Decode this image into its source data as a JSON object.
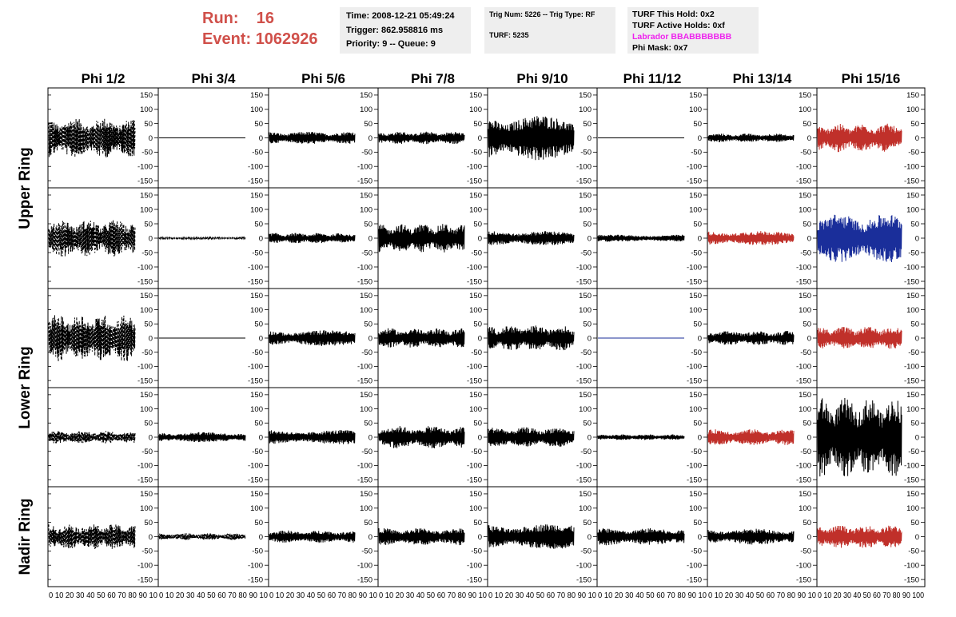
{
  "header": {
    "run_label": "Run:",
    "run_value": "16",
    "event_label": "Event:",
    "event_value": "1062926",
    "run_color": "#d0504a"
  },
  "info1": {
    "time": "Time: 2008-12-21 05:49:24",
    "trigger": "Trigger: 862.958816 ms",
    "priority": "Priority: 9 -- Queue: 9"
  },
  "info2": {
    "trig": "Trig Num: 5226 -- Trig Type: RF",
    "turf": "TURF: 5235"
  },
  "info3": {
    "this_hold": "TURF This Hold: 0x2",
    "active_holds": "TURF Active Holds: 0xf",
    "labrador": "Labrador BBABBBBBBB",
    "labrador_color": "#ee22ee",
    "phi_mask": "Phi Mask: 0x7"
  },
  "chart_data": {
    "type": "line",
    "layout": "grid",
    "column_titles": [
      "Phi 1/2",
      "Phi 3/4",
      "Phi 5/6",
      "Phi 7/8",
      "Phi 9/10",
      "Phi 11/12",
      "Phi 13/14",
      "Phi 15/16"
    ],
    "ring_labels": [
      "Upper Ring",
      "Lower Ring",
      "Nadir Ring"
    ],
    "rows_per_ring": [
      2,
      2,
      1
    ],
    "ylim": [
      -175,
      175
    ],
    "y_ticks": [
      -150,
      -100,
      -50,
      0,
      50,
      100,
      150
    ],
    "xlim": [
      0,
      100
    ],
    "x_tick_labels": [
      "0",
      "10",
      "20",
      "30",
      "40",
      "50",
      "60",
      "70",
      "80",
      "90",
      "100"
    ],
    "x_tick_label_text": "0 10 20 30 40 50 60 70 80 90 10",
    "last_x_tick_label_text": "0 10 20 30 40 50 60 70 80 90 100",
    "colors": {
      "black": "#000000",
      "red": "#c0302a",
      "blue": "#1a2e9a"
    },
    "panels": [
      [
        {
          "amp": 70,
          "color": "black",
          "dashed": true
        },
        {
          "amp": 0,
          "color": "black"
        },
        {
          "amp": 22,
          "color": "black"
        },
        {
          "amp": 22,
          "color": "black"
        },
        {
          "amp": 80,
          "color": "black"
        },
        {
          "amp": 0,
          "color": "black"
        },
        {
          "amp": 15,
          "color": "black"
        },
        {
          "amp": 50,
          "color": "red"
        }
      ],
      [
        {
          "amp": 65,
          "color": "black",
          "dashed": true
        },
        {
          "amp": 3,
          "color": "black",
          "dashed": true
        },
        {
          "amp": 18,
          "color": "black"
        },
        {
          "amp": 50,
          "color": "black"
        },
        {
          "amp": 25,
          "color": "black"
        },
        {
          "amp": 12,
          "color": "black"
        },
        {
          "amp": 25,
          "color": "red"
        },
        {
          "amp": 85,
          "color": "blue"
        }
      ],
      [
        {
          "amp": 85,
          "color": "black",
          "dashed": true
        },
        {
          "amp": 0,
          "color": "black"
        },
        {
          "amp": 28,
          "color": "black"
        },
        {
          "amp": 35,
          "color": "black"
        },
        {
          "amp": 45,
          "color": "black"
        },
        {
          "amp": 0,
          "color": "blue"
        },
        {
          "amp": 25,
          "color": "black"
        },
        {
          "amp": 40,
          "color": "red"
        }
      ],
      [
        {
          "amp": 22,
          "color": "black",
          "dashed": true
        },
        {
          "amp": 18,
          "color": "black"
        },
        {
          "amp": 25,
          "color": "black"
        },
        {
          "amp": 40,
          "color": "black"
        },
        {
          "amp": 35,
          "color": "black"
        },
        {
          "amp": 10,
          "color": "black"
        },
        {
          "amp": 28,
          "color": "red"
        },
        {
          "amp": 140,
          "color": "black"
        }
      ],
      [
        {
          "amp": 45,
          "color": "black",
          "dashed": true
        },
        {
          "amp": 12,
          "color": "black",
          "dashed": true
        },
        {
          "amp": 22,
          "color": "black"
        },
        {
          "amp": 30,
          "color": "black"
        },
        {
          "amp": 45,
          "color": "black"
        },
        {
          "amp": 30,
          "color": "black"
        },
        {
          "amp": 28,
          "color": "black"
        },
        {
          "amp": 40,
          "color": "red"
        }
      ]
    ]
  }
}
